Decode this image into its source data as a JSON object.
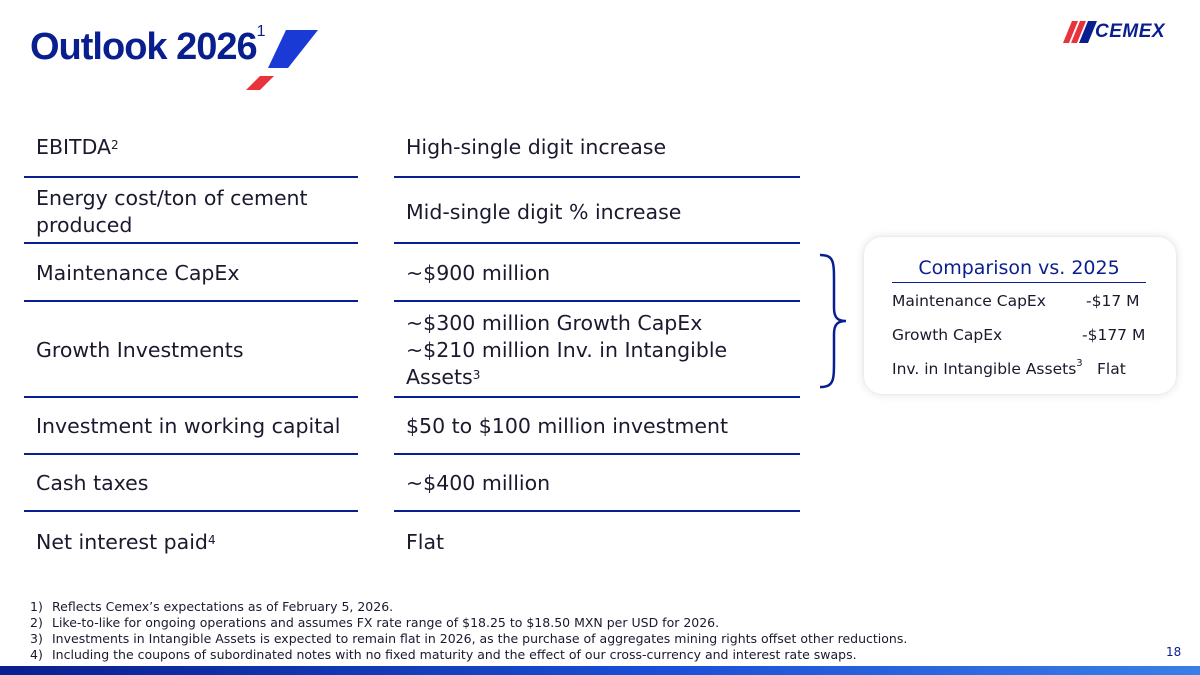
{
  "header": {
    "title": "Outlook 2026",
    "title_sup": "1",
    "logo_text": "CEMEX"
  },
  "rows": [
    {
      "label": "EBITDA",
      "label_sup": "2",
      "value": "High-single digit increase"
    },
    {
      "label": "Energy cost/ton of cement produced",
      "value": "Mid-single digit % increase"
    },
    {
      "label": "Maintenance CapEx",
      "value": "~$900 million"
    },
    {
      "label": "Growth Investments",
      "value_line1": "~$300 million Growth CapEx",
      "value_line2": "~$210 million Inv. in Intangible Assets",
      "value_sup": "3"
    },
    {
      "label": "Investment in working capital",
      "value": "$50 to $100 million investment"
    },
    {
      "label": "Cash taxes",
      "value": "~$400 million"
    },
    {
      "label": "Net interest paid",
      "label_sup": "4",
      "value": "Flat"
    }
  ],
  "comparison": {
    "title": "Comparison vs. 2025",
    "items": [
      {
        "label": "Maintenance CapEx",
        "value": "-$17 M"
      },
      {
        "label": "Growth CapEx",
        "value": "-$177 M"
      },
      {
        "label": "Inv. in Intangible Assets",
        "label_sup": "3",
        "value": "Flat"
      }
    ]
  },
  "footnotes": [
    {
      "num": "1)",
      "text": "Reflects Cemex’s expectations as of February 5, 2026."
    },
    {
      "num": "2)",
      "text": "Like-to-like for ongoing operations and assumes FX rate range of $18.25 to $18.50 MXN per USD for 2026."
    },
    {
      "num": "3)",
      "text": "Investments in Intangible Assets is expected to remain flat in 2026, as the purchase of aggregates mining rights offset other reductions."
    },
    {
      "num": "4)",
      "text": "Including the coupons of subordinated notes with no fixed maturity and the effect of our cross-currency and interest rate swaps."
    }
  ],
  "page_number": "18",
  "colors": {
    "primary_blue": "#0a1f8f",
    "accent_red": "#e8323c",
    "text": "#1a1a2e"
  },
  "icons": {
    "title_decoration": "blue-red-slash-icon",
    "logo_mark": "cemex-stripes-icon"
  }
}
